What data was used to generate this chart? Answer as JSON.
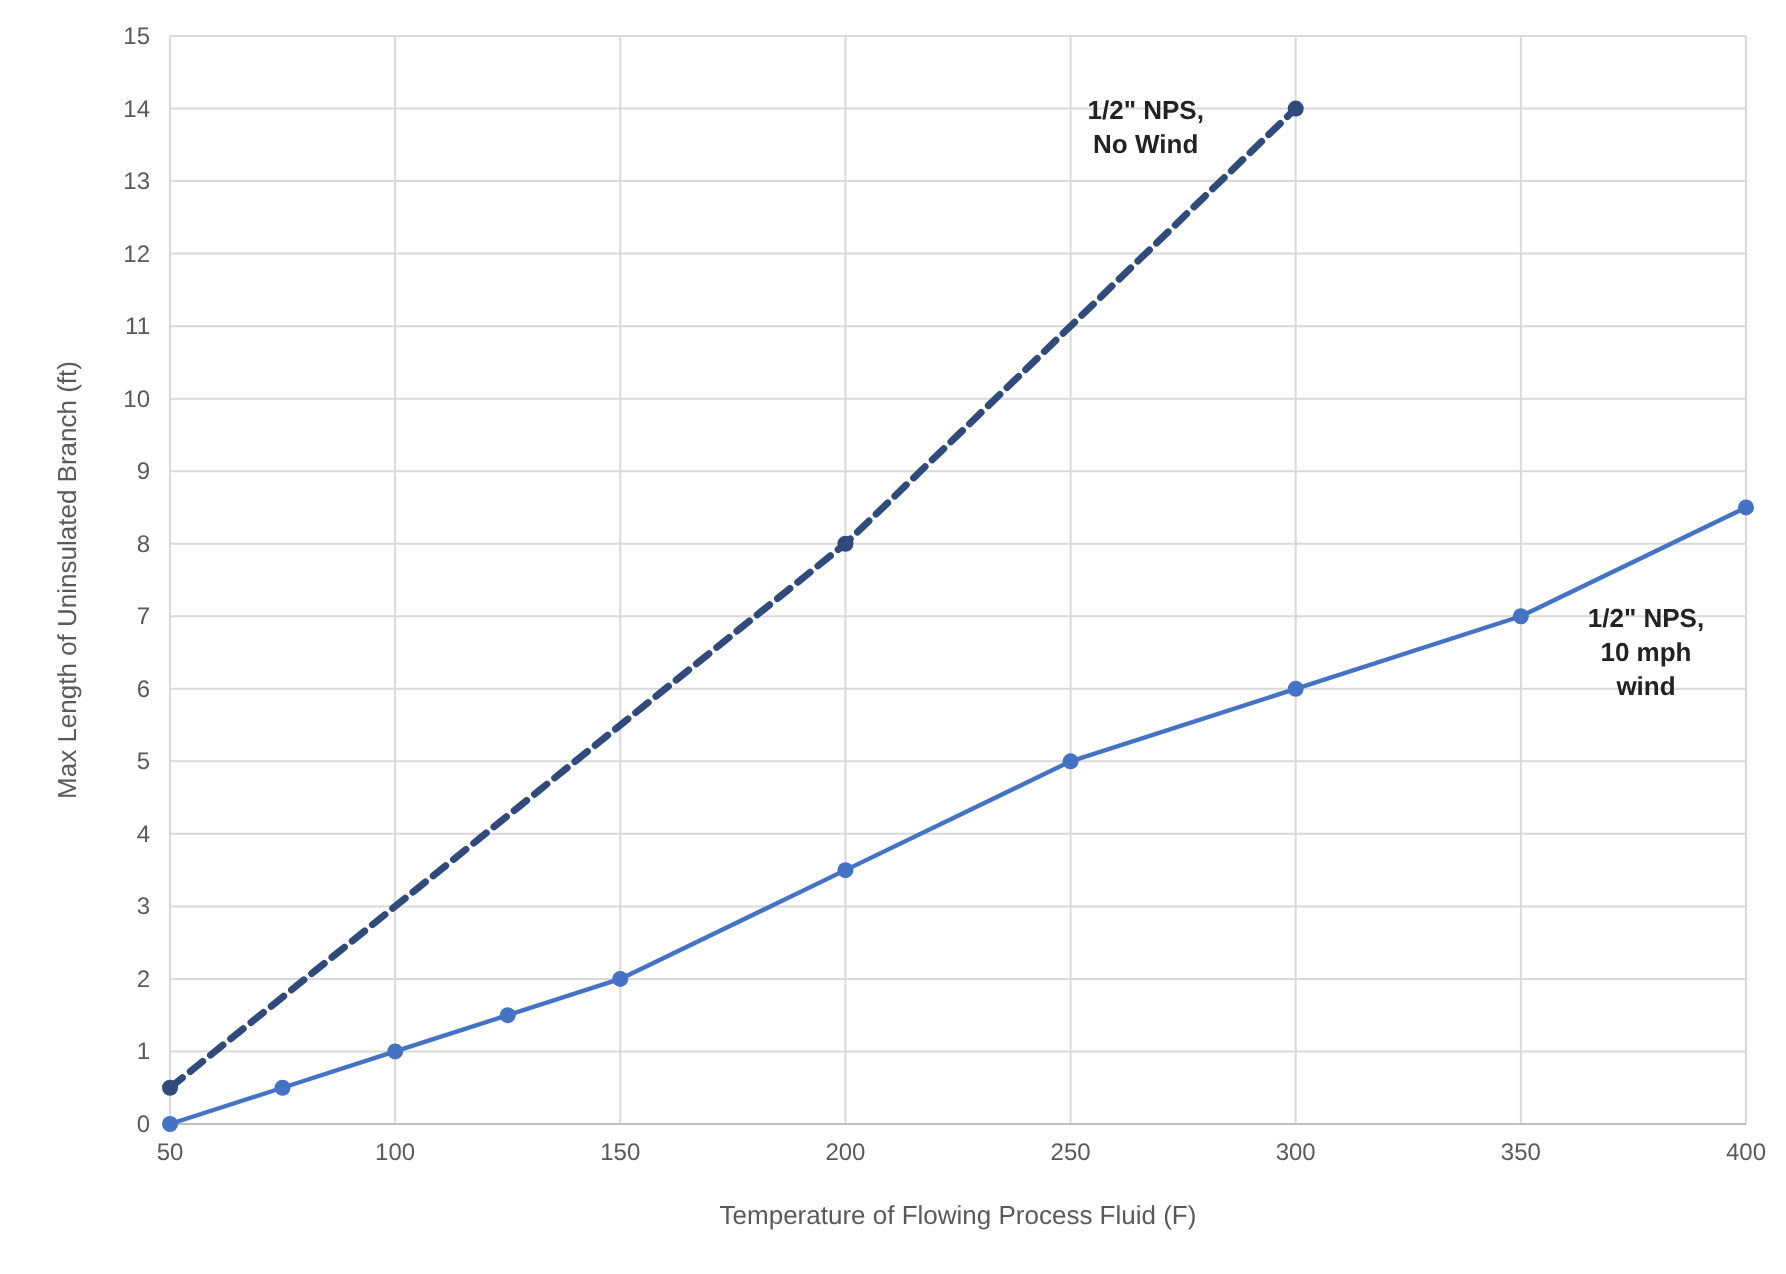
{
  "chart_data": {
    "type": "line",
    "xlabel": "Temperature  of Flowing Process Fluid (F)",
    "ylabel": "Max Length  of Uninsulated Branch (ft)",
    "xlim": [
      50,
      400
    ],
    "xticks": [
      50,
      100,
      150,
      200,
      250,
      300,
      350,
      400
    ],
    "ylim": [
      0,
      15
    ],
    "yticks": [
      0,
      1,
      2,
      3,
      4,
      5,
      6,
      7,
      8,
      9,
      10,
      11,
      12,
      13,
      14,
      15
    ],
    "grid": true,
    "marker": "circle",
    "series": [
      {
        "name": "1/2\" NPS, No Wind",
        "color": "#2f4b7c",
        "line_style": "dashed",
        "x": [
          50,
          200,
          300
        ],
        "values": [
          0.5,
          8,
          14
        ]
      },
      {
        "name": "1/2\" NPS, 10 mph wind",
        "color": "#4472c4",
        "line_style": "solid",
        "x": [
          50,
          75,
          100,
          125,
          150,
          200,
          250,
          300,
          350,
          400
        ],
        "values": [
          0,
          0.5,
          1,
          1.5,
          2,
          3.5,
          5,
          6,
          7,
          8.5
        ]
      }
    ]
  }
}
